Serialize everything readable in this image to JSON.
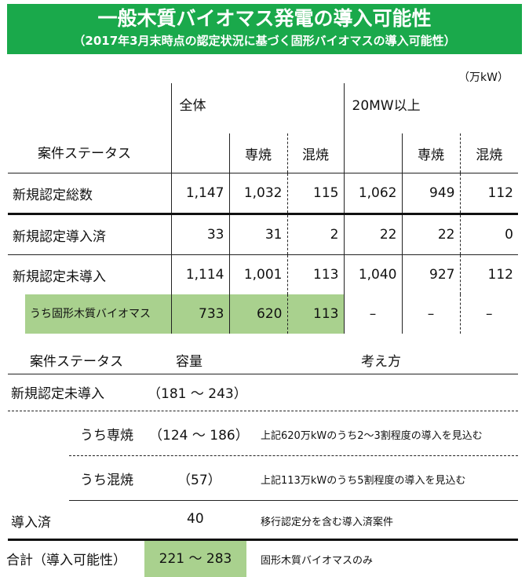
{
  "title": "一般木質バイオマス発電の導入可能性",
  "subtitle": "（2017年3月末時点の認定状況に基づく固形バイオマスの導入可能性）",
  "unit": "（万kW）",
  "table": {
    "header_status": "案件ステータス",
    "group_all": "全体",
    "group_20mw": "20MW以上",
    "col_sensho": "専焼",
    "col_konsho": "混焼",
    "rows": [
      {
        "label": "新規認定総数",
        "values": [
          "1,147",
          "1,032",
          "115",
          "1,062",
          "949",
          "112"
        ]
      },
      {
        "label": "新規認定導入済",
        "values": [
          "33",
          "31",
          "2",
          "22",
          "22",
          "0"
        ]
      },
      {
        "label": "新規認定未導入",
        "values": [
          "1,114",
          "1,001",
          "113",
          "1,040",
          "927",
          "112"
        ]
      },
      {
        "label": "うち固形木質バイオマス",
        "values": [
          "733",
          "620",
          "113",
          "–",
          "–",
          "–"
        ]
      }
    ]
  },
  "lower": {
    "header_status": "案件ステータス",
    "header_capacity": "容量",
    "header_approach": "考え方",
    "rows": [
      {
        "label": "新規認定未導入",
        "capacity": "（181 ～ 243）",
        "note": ""
      },
      {
        "label": "うち専焼",
        "capacity": "（124 ～ 186）",
        "note": "上記620万kWのうち2～3割程度の導入を見込む"
      },
      {
        "label": "うち混焼",
        "capacity": "（57）",
        "note": "上記113万kWのうち5割程度の導入を見込む"
      },
      {
        "label": "導入済",
        "capacity": "40",
        "note": "移行認定分を含む導入済案件"
      },
      {
        "label": "合計（導入可能性）",
        "capacity": "221 ～ 283",
        "note": "固形木質バイオマスのみ"
      }
    ]
  }
}
